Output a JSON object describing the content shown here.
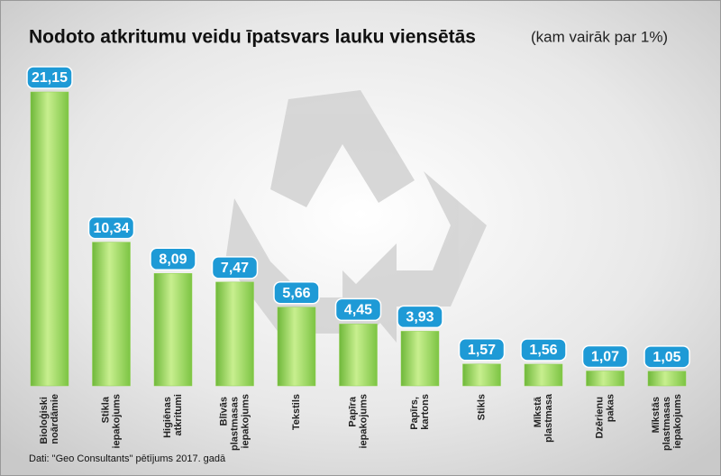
{
  "chart_data": {
    "type": "bar",
    "title": "Nodoto atkritumu veidu īpatsvars lauku viensētās",
    "subtitle": "(kam vairāk par 1%)",
    "categories": [
      "Bioloģiski noārdāmie",
      "Stikla iepakojums",
      "Higiēnas atkritumi",
      "Blīvās plastmasas iepakojums",
      "Tekstils",
      "Papīra iepakojums",
      "Papīrs, kartons",
      "Stikls",
      "Mīkstā plastmasa",
      "Dzērienu pakas",
      "Mīkstās plastmasas iepakojums"
    ],
    "values": [
      21.15,
      10.34,
      8.09,
      7.47,
      5.66,
      4.45,
      3.93,
      1.57,
      1.56,
      1.07,
      1.05
    ],
    "value_labels": [
      "21,15",
      "10,34",
      "8,09",
      "7,47",
      "5,66",
      "4,45",
      "3,93",
      "1,57",
      "1,56",
      "1,07",
      "1,05"
    ],
    "color": "#8fd14f",
    "label_color": "#1e9ad6",
    "source": "Dati: \"Geo Consultants\" pētījums 2017. gadā"
  }
}
